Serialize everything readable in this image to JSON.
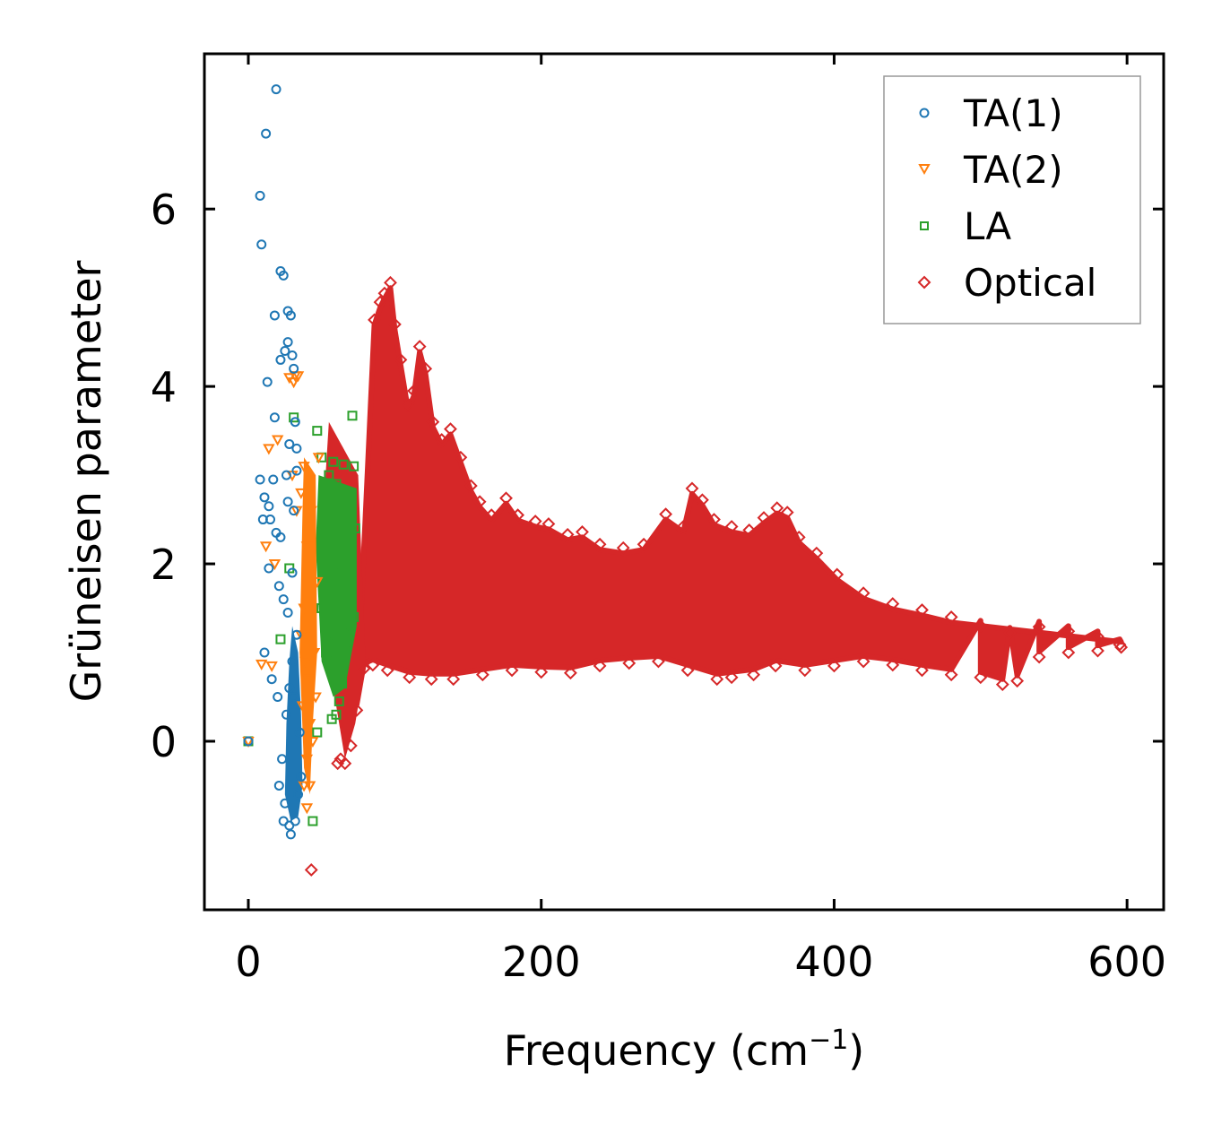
{
  "chart_data": {
    "type": "scatter",
    "title": "",
    "xlabel": "Frequency (cm",
    "xlabel_sup": "−1",
    "xlabel_close": ")",
    "ylabel": "Grüneisen parameter",
    "xlim": [
      -30,
      625
    ],
    "ylim": [
      -1.9,
      7.75
    ],
    "xticks": [
      0,
      200,
      400,
      600
    ],
    "xtick_labels": [
      "0",
      "200",
      "400",
      "600"
    ],
    "yticks": [
      0,
      2,
      4,
      6
    ],
    "ytick_labels": [
      "0",
      "2",
      "4",
      "6"
    ],
    "legend_position": "top-right",
    "series": [
      {
        "name": "TA(1)",
        "marker": "circle",
        "color": "#1f77b4",
        "points": [
          [
            0,
            0
          ],
          [
            19,
            7.35
          ],
          [
            12,
            6.85
          ],
          [
            8,
            6.15
          ],
          [
            9,
            5.6
          ],
          [
            22,
            5.3
          ],
          [
            24,
            5.25
          ],
          [
            27,
            4.85
          ],
          [
            29,
            4.8
          ],
          [
            18,
            4.8
          ],
          [
            27,
            4.5
          ],
          [
            25,
            4.4
          ],
          [
            30,
            4.35
          ],
          [
            22,
            4.3
          ],
          [
            31,
            4.2
          ],
          [
            13,
            4.05
          ],
          [
            18,
            3.65
          ],
          [
            32,
            3.6
          ],
          [
            28,
            3.35
          ],
          [
            33,
            3.3
          ],
          [
            8,
            2.95
          ],
          [
            17,
            2.95
          ],
          [
            11,
            2.75
          ],
          [
            14,
            2.65
          ],
          [
            10,
            2.5
          ],
          [
            15,
            2.5
          ],
          [
            19,
            2.35
          ],
          [
            22,
            2.3
          ],
          [
            14,
            1.95
          ],
          [
            21,
            1.75
          ],
          [
            24,
            1.6
          ],
          [
            27,
            1.45
          ],
          [
            11,
            1.0
          ],
          [
            16,
            0.7
          ],
          [
            20,
            0.5
          ],
          [
            26,
            0.3
          ],
          [
            23,
            -0.2
          ],
          [
            21,
            -0.5
          ],
          [
            25,
            -0.7
          ],
          [
            24,
            -0.9
          ],
          [
            28,
            -0.95
          ],
          [
            29,
            -1.05
          ],
          [
            32,
            -0.9
          ],
          [
            34,
            -0.6
          ],
          [
            36,
            -0.4
          ],
          [
            35,
            0.1
          ],
          [
            31,
            0.5
          ],
          [
            30,
            0.9
          ],
          [
            33,
            1.2
          ],
          [
            28,
            0.6
          ],
          [
            30,
            1.9
          ],
          [
            31,
            2.6
          ],
          [
            27,
            2.7
          ],
          [
            26,
            3.0
          ],
          [
            33,
            3.05
          ]
        ]
      },
      {
        "name": "TA(2)",
        "marker": "triangle-down",
        "color": "#ff7f0e",
        "points": [
          [
            0,
            0
          ],
          [
            28,
            4.1
          ],
          [
            32,
            4.12
          ],
          [
            34,
            4.12
          ],
          [
            31,
            4.05
          ],
          [
            14,
            3.3
          ],
          [
            20,
            3.4
          ],
          [
            12,
            2.2
          ],
          [
            18,
            2.0
          ],
          [
            9,
            0.87
          ],
          [
            16,
            0.85
          ],
          [
            30,
            3.0
          ],
          [
            33,
            2.6
          ],
          [
            36,
            2.8
          ],
          [
            38,
            3.1
          ],
          [
            40,
            2.2
          ],
          [
            38,
            1.5
          ],
          [
            36,
            1.2
          ],
          [
            39,
            0.9
          ],
          [
            41,
            0.7
          ],
          [
            37,
            0.4
          ],
          [
            42,
            0.2
          ],
          [
            40,
            -0.2
          ],
          [
            38,
            -0.5
          ],
          [
            40,
            -0.75
          ],
          [
            42,
            -0.5
          ],
          [
            44,
            0.0
          ],
          [
            46,
            0.5
          ],
          [
            45,
            1.0
          ],
          [
            47,
            1.8
          ],
          [
            43,
            2.6
          ],
          [
            48,
            3.2
          ]
        ]
      },
      {
        "name": "LA",
        "marker": "square",
        "color": "#2ca02c",
        "points": [
          [
            0,
            0
          ],
          [
            31,
            3.65
          ],
          [
            71,
            3.67
          ],
          [
            47,
            3.5
          ],
          [
            50,
            3.2
          ],
          [
            58,
            3.15
          ],
          [
            72,
            3.1
          ],
          [
            65,
            3.12
          ],
          [
            55,
            3.0
          ],
          [
            60,
            2.9
          ],
          [
            28,
            1.95
          ],
          [
            22,
            1.15
          ],
          [
            44,
            -0.9
          ],
          [
            47,
            0.1
          ],
          [
            57,
            0.25
          ],
          [
            60,
            0.3
          ],
          [
            62,
            0.45
          ],
          [
            64,
            0.65
          ],
          [
            55,
            0.9
          ],
          [
            53,
            1.0
          ],
          [
            65,
            1.3
          ],
          [
            70,
            1.8
          ],
          [
            73,
            2.4
          ],
          [
            68,
            2.7
          ],
          [
            52,
            2.5
          ],
          [
            58,
            2.2
          ],
          [
            62,
            1.6
          ],
          [
            67,
            1.1
          ],
          [
            50,
            1.5
          ],
          [
            56,
            1.9
          ],
          [
            60,
            2.6
          ],
          [
            66,
            2.3
          ],
          [
            72,
            1.4
          ],
          [
            54,
            1.2
          ],
          [
            64,
            2.0
          ],
          [
            70,
            2.8
          ]
        ]
      },
      {
        "name": "Optical",
        "marker": "diamond",
        "color": "#d62728",
        "points": [
          [
            43,
            -1.45
          ],
          [
            86,
            4.75
          ],
          [
            90,
            4.95
          ],
          [
            93,
            5.05
          ],
          [
            97,
            5.17
          ],
          [
            100,
            4.7
          ],
          [
            104,
            4.3
          ],
          [
            109,
            3.8
          ],
          [
            113,
            3.95
          ],
          [
            117,
            4.45
          ],
          [
            121,
            4.2
          ],
          [
            126,
            3.6
          ],
          [
            132,
            3.4
          ],
          [
            138,
            3.52
          ],
          [
            145,
            3.2
          ],
          [
            152,
            2.88
          ],
          [
            158,
            2.7
          ],
          [
            166,
            2.55
          ],
          [
            176,
            2.74
          ],
          [
            184,
            2.55
          ],
          [
            196,
            2.48
          ],
          [
            205,
            2.45
          ],
          [
            218,
            2.33
          ],
          [
            228,
            2.36
          ],
          [
            240,
            2.22
          ],
          [
            256,
            2.18
          ],
          [
            270,
            2.22
          ],
          [
            285,
            2.56
          ],
          [
            297,
            2.42
          ],
          [
            303,
            2.85
          ],
          [
            310,
            2.72
          ],
          [
            318,
            2.5
          ],
          [
            330,
            2.42
          ],
          [
            342,
            2.38
          ],
          [
            352,
            2.52
          ],
          [
            361,
            2.63
          ],
          [
            368,
            2.58
          ],
          [
            376,
            2.3
          ],
          [
            388,
            2.12
          ],
          [
            402,
            1.88
          ],
          [
            420,
            1.67
          ],
          [
            440,
            1.55
          ],
          [
            460,
            1.48
          ],
          [
            480,
            1.4
          ],
          [
            500,
            1.3
          ],
          [
            520,
            1.22
          ],
          [
            540,
            1.29
          ],
          [
            560,
            1.24
          ],
          [
            580,
            1.18
          ],
          [
            595,
            1.09
          ],
          [
            61,
            -0.25
          ],
          [
            66,
            -0.25
          ],
          [
            63,
            -0.2
          ],
          [
            70,
            -0.05
          ],
          [
            74,
            0.35
          ],
          [
            79,
            0.82
          ],
          [
            85,
            0.86
          ],
          [
            95,
            0.8
          ],
          [
            110,
            0.72
          ],
          [
            125,
            0.7
          ],
          [
            140,
            0.7
          ],
          [
            160,
            0.75
          ],
          [
            180,
            0.8
          ],
          [
            200,
            0.78
          ],
          [
            220,
            0.77
          ],
          [
            240,
            0.85
          ],
          [
            260,
            0.88
          ],
          [
            280,
            0.9
          ],
          [
            300,
            0.8
          ],
          [
            320,
            0.7
          ],
          [
            330,
            0.72
          ],
          [
            345,
            0.75
          ],
          [
            360,
            0.85
          ],
          [
            380,
            0.8
          ],
          [
            400,
            0.85
          ],
          [
            420,
            0.9
          ],
          [
            440,
            0.86
          ],
          [
            460,
            0.8
          ],
          [
            480,
            0.75
          ],
          [
            500,
            0.72
          ],
          [
            515,
            0.64
          ],
          [
            525,
            0.68
          ],
          [
            540,
            0.95
          ],
          [
            560,
            1.0
          ],
          [
            580,
            1.02
          ],
          [
            596,
            1.06
          ]
        ]
      }
    ]
  }
}
